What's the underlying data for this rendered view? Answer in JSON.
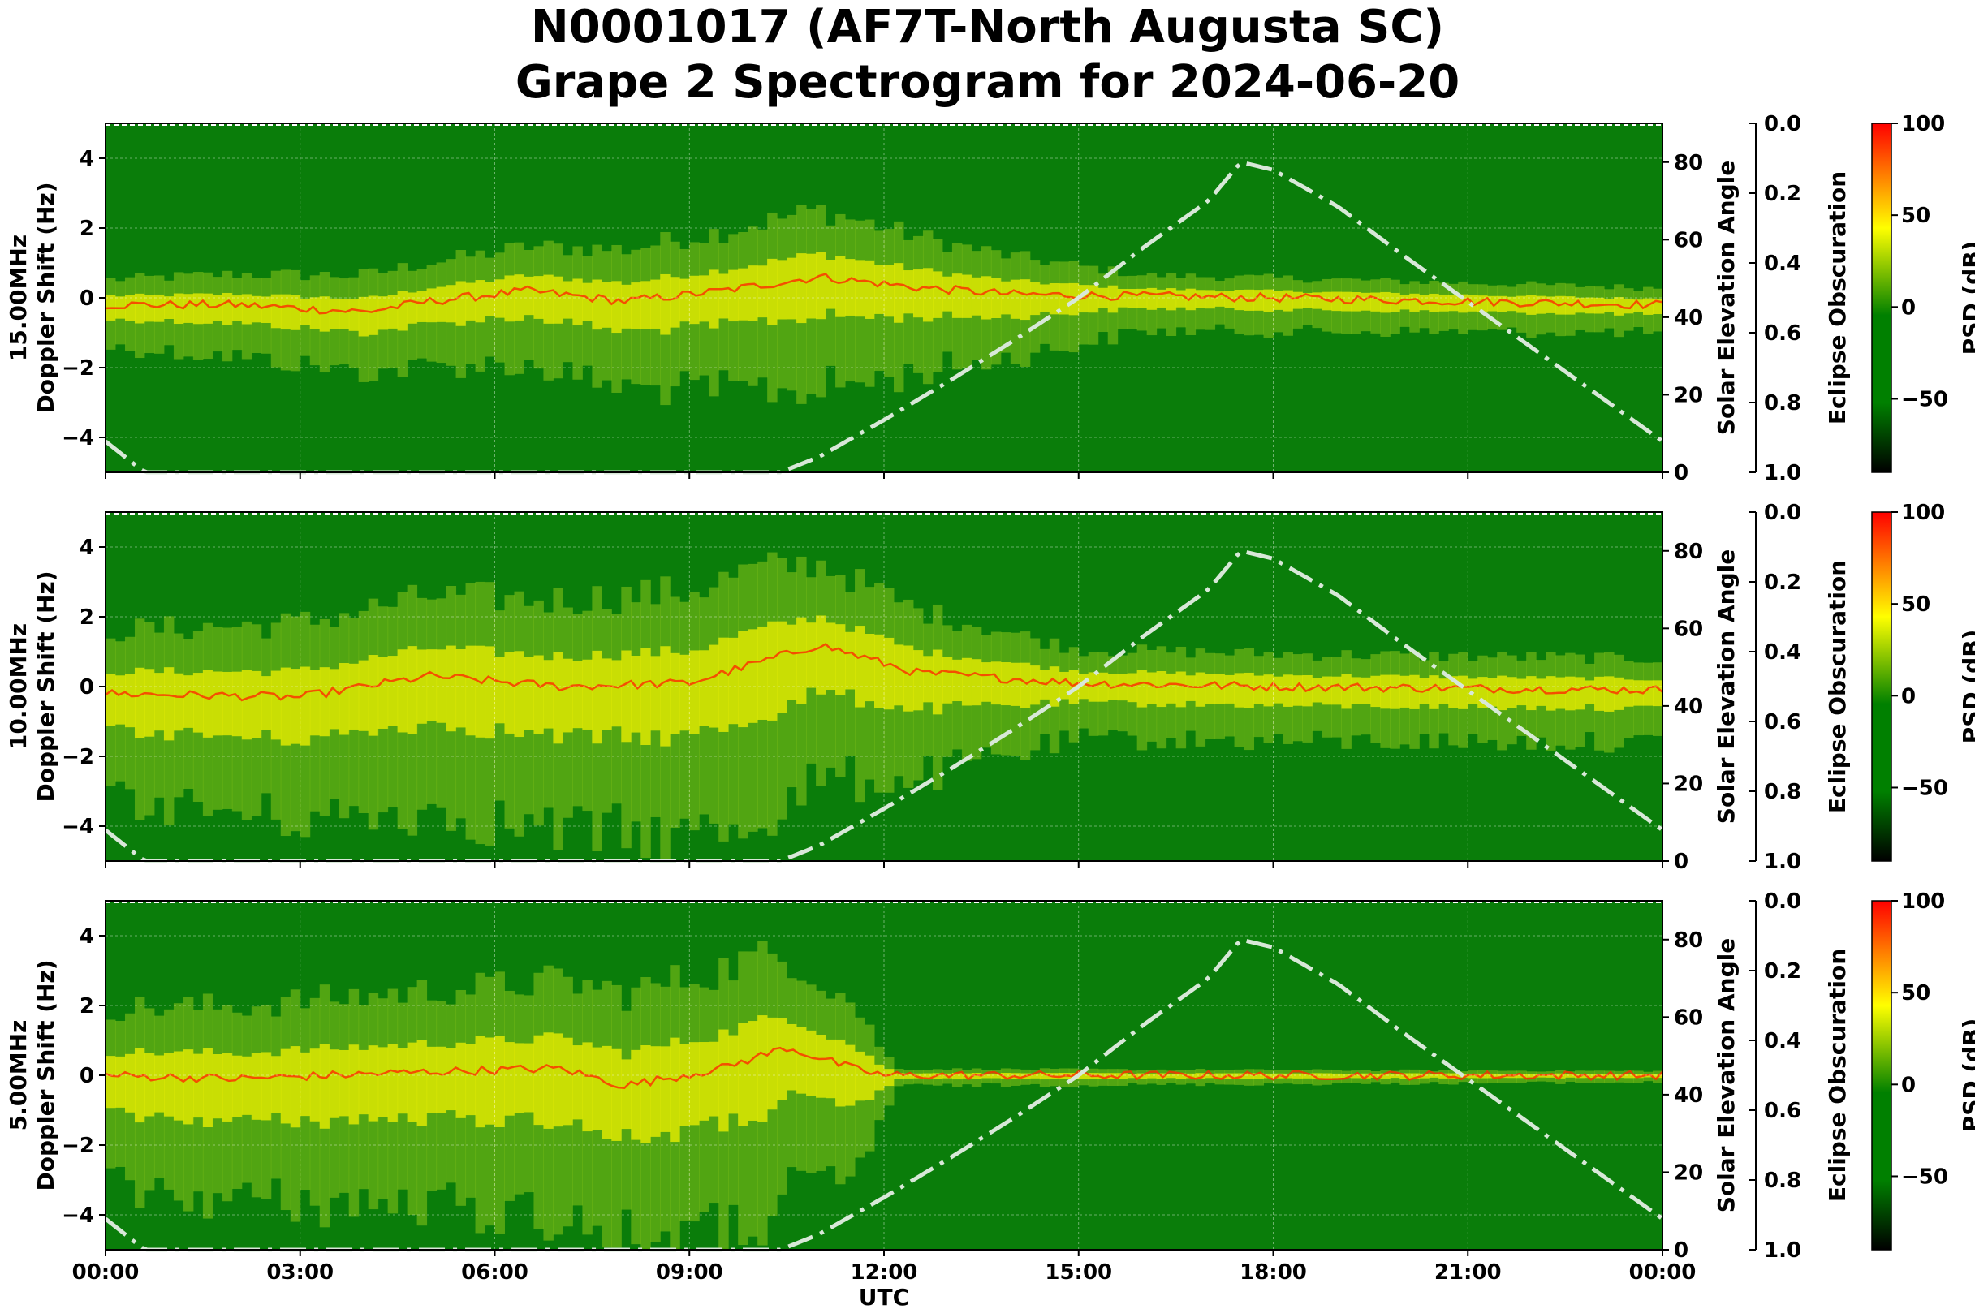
{
  "title": {
    "line1": "N0001017 (AF7T-North Augusta SC)",
    "line2": "Grape 2 Spectrogram for 2024-06-20"
  },
  "colors": {
    "background_green": "#0a7d0a",
    "signal_yellow": "#f2f200",
    "signal_red": "#ff2a00",
    "solar_curve": "#d8e8d8",
    "colorbar_top": "#ff0000",
    "colorbar_mid_high": "#ffff00",
    "colorbar_mid": "#008000",
    "colorbar_bottom": "#000000"
  },
  "chart_data": [
    {
      "type": "heatmap",
      "panel_label": "15.00MHz",
      "ylabel": "15.00MHz\nDoppler Shift (Hz)",
      "ylim": [
        -5,
        5
      ],
      "yticks": [
        "4",
        "2",
        "0",
        "−2",
        "−4"
      ],
      "right_axis_label": "Solar Elevation Angle",
      "right_ylim": [
        0,
        90
      ],
      "right_ticks": [
        "80",
        "60",
        "40",
        "20",
        "0"
      ],
      "eclipse_label": "Eclipse Obscuration",
      "eclipse_ticks": [
        "0.0",
        "0.2",
        "0.4",
        "0.6",
        "0.8",
        "1.0"
      ],
      "colorbar_label": "PSD (dB)",
      "colorbar_ticks": [
        "100",
        "50",
        "0",
        "−50"
      ],
      "clim": [
        -90,
        100
      ],
      "show_x_ticks": false,
      "signal_trace": [
        [
          0,
          -0.2
        ],
        [
          2,
          -0.2
        ],
        [
          4,
          -0.4
        ],
        [
          5,
          -0.1
        ],
        [
          6.5,
          0.2
        ],
        [
          8,
          -0.1
        ],
        [
          9.5,
          0.2
        ],
        [
          11,
          0.6
        ],
        [
          12.5,
          0.3
        ],
        [
          14,
          0.1
        ],
        [
          18,
          0
        ],
        [
          24,
          -0.2
        ]
      ],
      "noise_band_width": [
        [
          0,
          1.2
        ],
        [
          6,
          2.0
        ],
        [
          11,
          3.2
        ],
        [
          13,
          2.2
        ],
        [
          16,
          1.0
        ],
        [
          24,
          0.8
        ]
      ]
    },
    {
      "type": "heatmap",
      "panel_label": "10.00MHz",
      "ylabel": "10.00MHz\nDoppler Shift (Hz)",
      "ylim": [
        -5,
        5
      ],
      "yticks": [
        "4",
        "2",
        "0",
        "−2",
        "−4"
      ],
      "right_axis_label": "Solar Elevation Angle",
      "right_ylim": [
        0,
        90
      ],
      "right_ticks": [
        "80",
        "60",
        "40",
        "20",
        "0"
      ],
      "eclipse_label": "Eclipse Obscuration",
      "eclipse_ticks": [
        "0.0",
        "0.2",
        "0.4",
        "0.6",
        "0.8",
        "1.0"
      ],
      "colorbar_label": "PSD (dB)",
      "colorbar_ticks": [
        "100",
        "50",
        "0",
        "−50"
      ],
      "clim": [
        -90,
        100
      ],
      "show_x_ticks": false,
      "signal_trace": [
        [
          0,
          -0.2
        ],
        [
          3,
          -0.3
        ],
        [
          5,
          0.3
        ],
        [
          7,
          0
        ],
        [
          9,
          0.1
        ],
        [
          11,
          1.2
        ],
        [
          12.5,
          0.4
        ],
        [
          15,
          0.1
        ],
        [
          18,
          0
        ],
        [
          24,
          -0.1
        ]
      ],
      "noise_band_width": [
        [
          0,
          3.0
        ],
        [
          6,
          4.0
        ],
        [
          10,
          4.5
        ],
        [
          12.5,
          3.0
        ],
        [
          15,
          1.6
        ],
        [
          24,
          1.5
        ]
      ]
    },
    {
      "type": "heatmap",
      "panel_label": "5.00MHz",
      "ylabel": "5.00MHz\nDoppler Shift (Hz)",
      "ylim": [
        -5,
        5
      ],
      "yticks": [
        "4",
        "2",
        "0",
        "−2",
        "−4"
      ],
      "right_axis_label": "Solar Elevation Angle",
      "right_ylim": [
        0,
        90
      ],
      "right_ticks": [
        "80",
        "60",
        "40",
        "20",
        "0"
      ],
      "eclipse_label": "Eclipse Obscuration",
      "eclipse_ticks": [
        "0.0",
        "0.2",
        "0.4",
        "0.6",
        "0.8",
        "1.0"
      ],
      "colorbar_label": "PSD (dB)",
      "colorbar_ticks": [
        "100",
        "50",
        "0",
        "−50"
      ],
      "clim": [
        -90,
        100
      ],
      "show_x_ticks": true,
      "signal_trace": [
        [
          0,
          0
        ],
        [
          2,
          -0.1
        ],
        [
          5,
          0.1
        ],
        [
          7,
          0.2
        ],
        [
          8,
          -0.3
        ],
        [
          9.5,
          0.2
        ],
        [
          10.5,
          0.8
        ],
        [
          11.5,
          0.2
        ],
        [
          12,
          0
        ],
        [
          24,
          0
        ]
      ],
      "noise_band_width": [
        [
          0,
          3.2
        ],
        [
          6,
          4.0
        ],
        [
          10,
          4.8
        ],
        [
          11.5,
          3.2
        ],
        [
          12.2,
          0.3
        ],
        [
          24,
          0.2
        ]
      ]
    }
  ],
  "x_axis": {
    "label": "UTC",
    "ticks": [
      "00:00",
      "03:00",
      "06:00",
      "09:00",
      "12:00",
      "15:00",
      "18:00",
      "21:00",
      "00:00"
    ],
    "xlim_hours": [
      0,
      24
    ]
  },
  "solar_elevation": {
    "style": "dash-dot",
    "points": [
      [
        0,
        8
      ],
      [
        0.6,
        0
      ],
      [
        10.4,
        0
      ],
      [
        11,
        4
      ],
      [
        12,
        13.5
      ],
      [
        13,
        23.5
      ],
      [
        14,
        34
      ],
      [
        15,
        45
      ],
      [
        16,
        58
      ],
      [
        17,
        70
      ],
      [
        17.5,
        80
      ],
      [
        18,
        78
      ],
      [
        19,
        68.5
      ],
      [
        20,
        56
      ],
      [
        21,
        44
      ],
      [
        22,
        32
      ],
      [
        23,
        20
      ],
      [
        23.5,
        14
      ],
      [
        24,
        8
      ]
    ]
  }
}
